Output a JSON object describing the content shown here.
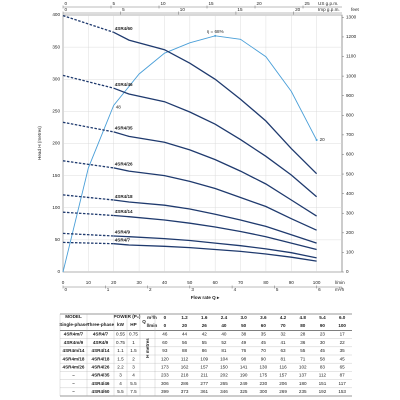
{
  "chart_data": {
    "type": "line",
    "y_label": "Head H (metres)",
    "y2_label": "feet",
    "x_label": "Flow rate Q ▸",
    "x_unit": "l/min",
    "x2_unit": "m³/h",
    "x3_unit": "US g.p.m.",
    "x4_unit": "Imp g.p.m.",
    "x": [
      0,
      20,
      26,
      40,
      50,
      60,
      70,
      80,
      90,
      100
    ],
    "xlim": [
      0,
      110
    ],
    "xticks": [
      0,
      10,
      20,
      30,
      40,
      50,
      60,
      70,
      80,
      90,
      100
    ],
    "x2lim": [
      0,
      6.6
    ],
    "x2ticks": [
      0,
      1,
      2,
      3,
      4,
      5,
      6
    ],
    "x3lim": [
      0,
      29.06
    ],
    "x3ticks": [
      0,
      5,
      10,
      15,
      20,
      25
    ],
    "x4lim": [
      0,
      24.2
    ],
    "x4ticks": [
      0,
      5,
      10,
      15,
      20
    ],
    "ylim": [
      0,
      400
    ],
    "yticks": [
      0,
      50,
      100,
      150,
      200,
      250,
      300,
      350,
      400
    ],
    "y2lim": [
      0,
      1312
    ],
    "y2ticks": [
      0,
      100,
      200,
      300,
      400,
      500,
      600,
      700,
      800,
      900,
      1000,
      1100,
      1200,
      1300
    ],
    "grid": true,
    "series": [
      {
        "name": "4SR4/60",
        "color": "#1f3a6e",
        "values": [
          399,
          373,
          361,
          346,
          325,
          300,
          269,
          235,
          192,
          153
        ]
      },
      {
        "name": "4SR4/46",
        "color": "#1f3a6e",
        "values": [
          306,
          286,
          277,
          265,
          249,
          230,
          206,
          180,
          151,
          117
        ]
      },
      {
        "name": "4SR4/35",
        "color": "#1f3a6e",
        "values": [
          233,
          218,
          211,
          202,
          190,
          175,
          157,
          137,
          112,
          87
        ]
      },
      {
        "name": "4SR4/26",
        "color": "#1f3a6e",
        "values": [
          173,
          162,
          157,
          150,
          141,
          130,
          116,
          102,
          83,
          65
        ]
      },
      {
        "name": "4SR4/18",
        "color": "#1f3a6e",
        "values": [
          120,
          112,
          109,
          104,
          98,
          90,
          81,
          71,
          58,
          45
        ]
      },
      {
        "name": "4SR4/14",
        "color": "#1f3a6e",
        "values": [
          93,
          88,
          86,
          81,
          76,
          70,
          63,
          55,
          45,
          35
        ]
      },
      {
        "name": "4SR4/9",
        "color": "#1f3a6e",
        "values": [
          60,
          56,
          55,
          52,
          49,
          45,
          41,
          36,
          30,
          22
        ]
      },
      {
        "name": "4SR4/7",
        "color": "#1f3a6e",
        "values": [
          46,
          44,
          42,
          40,
          38,
          35,
          32,
          28,
          23,
          17
        ]
      }
    ],
    "efficiency": {
      "color": "#4a9fd8",
      "x": [
        0,
        10,
        20,
        30,
        40,
        50,
        60,
        70,
        80,
        90,
        100
      ],
      "values": [
        0,
        30,
        48,
        57,
        63,
        66,
        68,
        67,
        62,
        52,
        38
      ],
      "ylim": [
        0,
        74
      ],
      "labels": [
        "η = 68%",
        "48",
        "20"
      ]
    }
  },
  "table": {
    "model": "MODEL",
    "single": "Single-phase",
    "three": "Three-phase",
    "power": "POWER (P₂)",
    "kw": "kW",
    "hp": "HP",
    "q": "Q",
    "m3h": "m³/h",
    "lmin": "l/min",
    "h": "H metres",
    "flow_m3h": [
      0,
      1.2,
      1.6,
      2.4,
      3.0,
      3.6,
      4.2,
      4.8,
      5.4,
      6.0
    ],
    "flow_m3h_labels": [
      "0",
      "1.2",
      "1.6",
      "2.4",
      "3.0",
      "3.6",
      "4.2",
      "4.8",
      "5.4",
      "6.0"
    ],
    "rows": [
      [
        "4SR4m/7",
        "4SR4/7",
        0.55,
        0.75
      ],
      [
        "4SR4m/9",
        "4SR4/9",
        0.75,
        1
      ],
      [
        "4SR4m/14",
        "4SR4/14",
        1.1,
        1.5
      ],
      [
        "4SR4m/18",
        "4SR4/18",
        1.5,
        2
      ],
      [
        "4SR4m/26",
        "4SR4/26",
        2.2,
        3
      ],
      [
        "–",
        "4SR4/35",
        3,
        4
      ],
      [
        "–",
        "4SR4/46",
        4,
        5.5
      ],
      [
        "–",
        "4SR4/60",
        5.5,
        7.5
      ]
    ]
  }
}
